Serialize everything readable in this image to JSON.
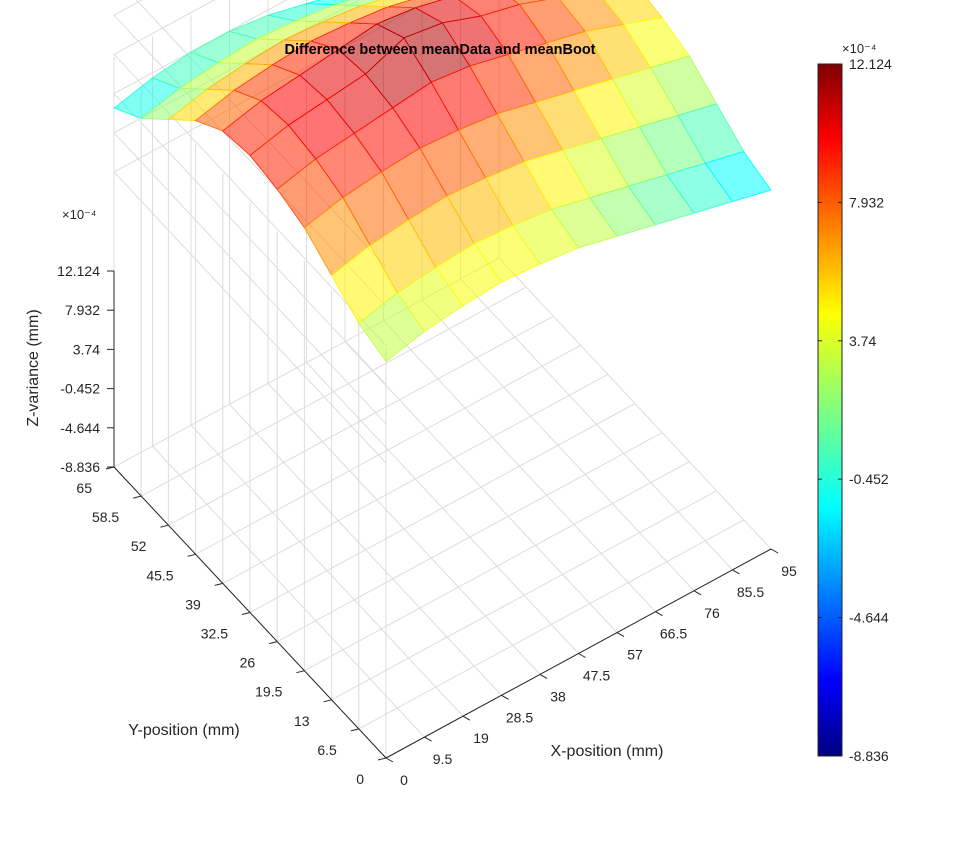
{
  "chart_data": {
    "type": "surface",
    "title": "Difference between meanData and meanBoot",
    "xlabel": "X-position (mm)",
    "ylabel": "Y-position (mm)",
    "zlabel": "Z-variance (mm)",
    "x_ticks": [
      "0",
      "9.5",
      "19",
      "28.5",
      "38",
      "47.5",
      "57",
      "66.5",
      "76",
      "85.5",
      "95"
    ],
    "y_ticks": [
      "0",
      "6.5",
      "13",
      "19.5",
      "26",
      "32.5",
      "39",
      "45.5",
      "52",
      "58.5",
      "65"
    ],
    "z_ticks": [
      "-8.836",
      "-4.644",
      "-0.452",
      "3.74",
      "7.932",
      "12.124"
    ],
    "z_exponent": "×10⁻⁴",
    "colorbar_ticks": [
      "-8.836",
      "-4.644",
      "-0.452",
      "3.74",
      "7.932",
      "12.124"
    ],
    "colorbar_exponent": "×10⁻⁴",
    "colormap": "jet",
    "face_alpha": 0.55,
    "xlim": [
      0,
      95
    ],
    "ylim": [
      0,
      65
    ],
    "zlim": [
      -8.836,
      12.124
    ],
    "z_scale": 0.0001,
    "x_values": [
      0,
      9.5,
      19,
      28.5,
      38,
      47.5,
      57,
      66.5,
      76,
      85.5,
      95
    ],
    "y_values": [
      0,
      6.5,
      13,
      19.5,
      26,
      32.5,
      39,
      45.5,
      52,
      58.5,
      65
    ],
    "z_values": [
      [
        2.0,
        3.0,
        3.5,
        3.8,
        3.5,
        3.0,
        2.0,
        1.0,
        0.0,
        -1.0,
        -2.0
      ],
      [
        3.0,
        4.0,
        4.5,
        4.8,
        4.5,
        4.0,
        3.0,
        2.0,
        1.0,
        0.0,
        -1.0
      ],
      [
        5.0,
        6.0,
        6.5,
        6.8,
        6.5,
        6.0,
        5.0,
        4.0,
        3.0,
        2.0,
        1.0
      ],
      [
        7.0,
        8.0,
        8.5,
        8.8,
        8.5,
        8.0,
        7.0,
        6.0,
        5.0,
        4.0,
        3.0
      ],
      [
        8.0,
        9.0,
        9.5,
        10.0,
        10.5,
        10.0,
        9.0,
        8.0,
        7.0,
        5.5,
        4.0
      ],
      [
        8.5,
        9.5,
        10.0,
        10.5,
        12.124,
        11.5,
        10.0,
        9.0,
        7.5,
        6.0,
        4.5
      ],
      [
        8.0,
        9.0,
        9.5,
        10.0,
        10.5,
        10.0,
        9.0,
        8.0,
        7.0,
        5.5,
        4.0
      ],
      [
        6.0,
        7.0,
        7.5,
        7.8,
        7.5,
        7.0,
        6.0,
        5.0,
        4.0,
        3.0,
        2.0
      ],
      [
        3.0,
        4.0,
        4.5,
        4.8,
        4.5,
        4.0,
        3.0,
        2.0,
        1.0,
        0.0,
        -1.0
      ],
      [
        0.0,
        1.0,
        1.5,
        1.8,
        1.5,
        1.0,
        0.0,
        -1.0,
        -2.0,
        -3.0,
        -4.0
      ],
      [
        -2.0,
        -1.0,
        -0.5,
        -0.5,
        -1.0,
        -2.0,
        -3.0,
        -4.0,
        -5.0,
        -6.0,
        -8.836
      ]
    ]
  }
}
